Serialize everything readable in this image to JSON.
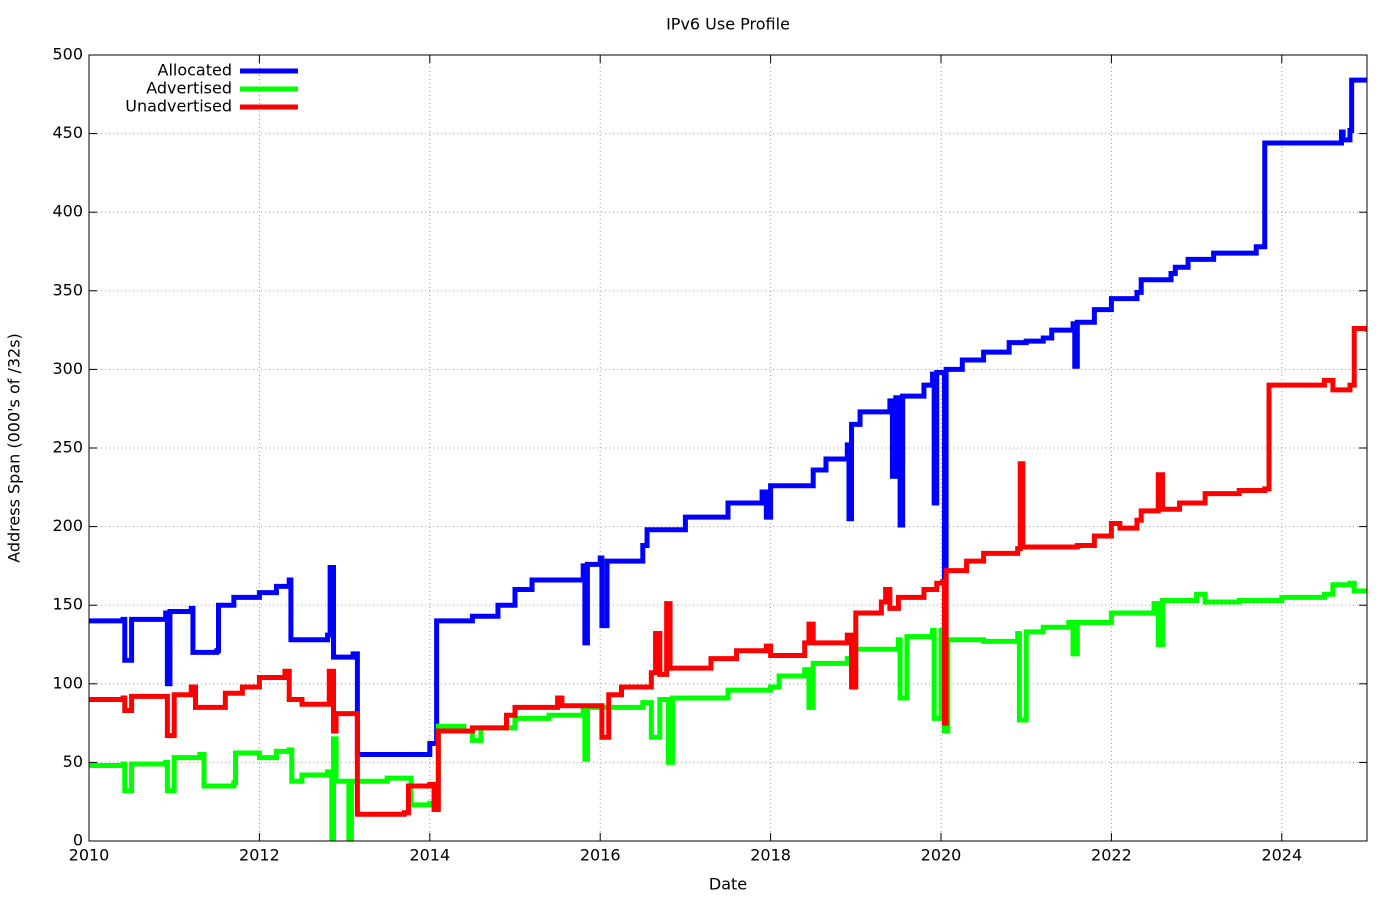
{
  "chart_data": {
    "type": "line",
    "title": "IPv6 Use Profile",
    "x_label": "Date",
    "y_label": "Address Span (000's of /32s)",
    "xlim": [
      2010,
      2025
    ],
    "xticks": [
      2010,
      2012,
      2014,
      2016,
      2018,
      2020,
      2022,
      2024
    ],
    "ylim": [
      0,
      500
    ],
    "yticks": [
      0,
      50,
      100,
      150,
      200,
      250,
      300,
      350,
      400,
      450,
      500
    ],
    "grid": true,
    "step": true,
    "legend": "top-left",
    "series": [
      {
        "name": "Allocated",
        "color": "#0000ff",
        "x": [
          2010,
          2010.4,
          2010.42,
          2010.5,
          2010.9,
          2010.92,
          2010.95,
          2011.2,
          2011.22,
          2011.5,
          2011.52,
          2011.7,
          2012.0,
          2012.2,
          2012.35,
          2012.37,
          2012.8,
          2012.83,
          2012.87,
          2013.1,
          2013.15,
          2014.0,
          2014.08,
          2014.5,
          2014.8,
          2015.0,
          2015.2,
          2015.8,
          2015.82,
          2015.85,
          2016.0,
          2016.02,
          2016.08,
          2016.5,
          2016.55,
          2017.0,
          2017.5,
          2017.9,
          2017.95,
          2018.0,
          2018.5,
          2018.65,
          2018.9,
          2018.92,
          2018.95,
          2019.05,
          2019.4,
          2019.43,
          2019.47,
          2019.52,
          2019.55,
          2019.8,
          2019.9,
          2019.92,
          2019.95,
          2020.02,
          2020.04,
          2020.06,
          2020.25,
          2020.5,
          2020.8,
          2021.0,
          2021.2,
          2021.3,
          2021.55,
          2021.57,
          2021.6,
          2021.8,
          2022.0,
          2022.3,
          2022.35,
          2022.7,
          2022.75,
          2022.9,
          2023.2,
          2023.7,
          2023.8,
          2024.7,
          2024.72,
          2024.8,
          2024.82,
          2025
        ],
        "values": [
          140,
          141,
          115,
          141,
          145,
          100,
          146,
          148,
          120,
          121,
          150,
          155,
          158,
          162,
          166,
          128,
          131,
          174,
          117,
          119,
          55,
          62,
          140,
          143,
          150,
          160,
          166,
          175,
          126,
          176,
          180,
          137,
          178,
          188,
          198,
          206,
          215,
          222,
          206,
          226,
          236,
          243,
          252,
          205,
          265,
          273,
          280,
          232,
          282,
          201,
          283,
          290,
          297,
          215,
          298,
          298,
          165,
          300,
          306,
          311,
          317,
          318,
          320,
          325,
          329,
          302,
          330,
          338,
          345,
          349,
          357,
          361,
          365,
          370,
          374,
          378,
          444,
          451,
          446,
          452,
          484,
          484
        ]
      },
      {
        "name": "Advertised",
        "color": "#00ff00",
        "x": [
          2010,
          2010.4,
          2010.42,
          2010.5,
          2010.9,
          2010.92,
          2011.0,
          2011.3,
          2011.35,
          2011.7,
          2011.72,
          2012.0,
          2012.2,
          2012.35,
          2012.38,
          2012.5,
          2012.8,
          2012.85,
          2012.87,
          2012.9,
          2013.05,
          2013.08,
          2013.5,
          2013.75,
          2013.78,
          2014.0,
          2014.1,
          2014.4,
          2014.5,
          2014.6,
          2015.0,
          2015.4,
          2015.8,
          2015.82,
          2015.85,
          2016.5,
          2016.6,
          2016.7,
          2016.8,
          2016.85,
          2017.5,
          2018.0,
          2018.1,
          2018.4,
          2018.45,
          2018.5,
          2018.9,
          2018.95,
          2019.5,
          2019.52,
          2019.6,
          2019.9,
          2019.92,
          2020.0,
          2020.04,
          2020.08,
          2020.5,
          2020.9,
          2020.92,
          2021.0,
          2021.2,
          2021.5,
          2021.55,
          2021.6,
          2022.0,
          2022.5,
          2022.55,
          2022.6,
          2023.0,
          2023.1,
          2023.5,
          2024.0,
          2024.5,
          2024.6,
          2024.8,
          2024.85,
          2025
        ],
        "values": [
          48,
          49,
          32,
          49,
          50,
          32,
          53,
          55,
          35,
          37,
          56,
          53,
          57,
          58,
          38,
          42,
          44,
          0,
          65,
          38,
          0,
          38,
          40,
          40,
          23,
          24,
          73,
          70,
          64,
          72,
          78,
          80,
          84,
          52,
          85,
          88,
          66,
          90,
          50,
          91,
          96,
          98,
          105,
          109,
          85,
          113,
          116,
          122,
          128,
          91,
          130,
          134,
          78,
          134,
          70,
          128,
          127,
          132,
          77,
          133,
          136,
          139,
          119,
          139,
          145,
          151,
          125,
          153,
          157,
          152,
          153,
          155,
          157,
          163,
          164,
          159,
          160
        ]
      },
      {
        "name": "Unadvertised",
        "color": "#ff0000",
        "x": [
          2010,
          2010.4,
          2010.42,
          2010.5,
          2010.9,
          2010.92,
          2011.0,
          2011.2,
          2011.25,
          2011.5,
          2011.6,
          2011.8,
          2012.0,
          2012.3,
          2012.35,
          2012.5,
          2012.8,
          2012.82,
          2012.87,
          2012.9,
          2013.1,
          2013.15,
          2013.7,
          2013.75,
          2014.0,
          2014.05,
          2014.1,
          2014.5,
          2014.9,
          2015.0,
          2015.5,
          2015.55,
          2016.0,
          2016.02,
          2016.1,
          2016.25,
          2016.6,
          2016.65,
          2016.7,
          2016.78,
          2016.82,
          2017.3,
          2017.6,
          2017.95,
          2018.0,
          2018.4,
          2018.45,
          2018.5,
          2018.9,
          2018.95,
          2019.0,
          2019.3,
          2019.35,
          2019.4,
          2019.5,
          2019.8,
          2019.95,
          2020.02,
          2020.04,
          2020.06,
          2020.3,
          2020.5,
          2020.9,
          2020.93,
          2020.96,
          2021.5,
          2021.6,
          2021.8,
          2022.0,
          2022.1,
          2022.3,
          2022.35,
          2022.55,
          2022.6,
          2022.8,
          2023.1,
          2023.5,
          2023.8,
          2023.85,
          2024.5,
          2024.6,
          2024.8,
          2024.85,
          2025
        ],
        "values": [
          90,
          91,
          83,
          92,
          92,
          67,
          93,
          98,
          85,
          85,
          94,
          98,
          104,
          108,
          90,
          87,
          87,
          108,
          70,
          81,
          81,
          17,
          18,
          35,
          36,
          20,
          70,
          72,
          80,
          85,
          91,
          86,
          86,
          66,
          93,
          98,
          107,
          132,
          106,
          151,
          110,
          116,
          121,
          124,
          118,
          126,
          138,
          126,
          131,
          98,
          145,
          152,
          160,
          148,
          155,
          160,
          164,
          165,
          75,
          172,
          178,
          183,
          186,
          240,
          187,
          187,
          188,
          194,
          202,
          199,
          204,
          210,
          233,
          211,
          215,
          221,
          223,
          224,
          290,
          293,
          287,
          290,
          326,
          324
        ]
      }
    ]
  }
}
